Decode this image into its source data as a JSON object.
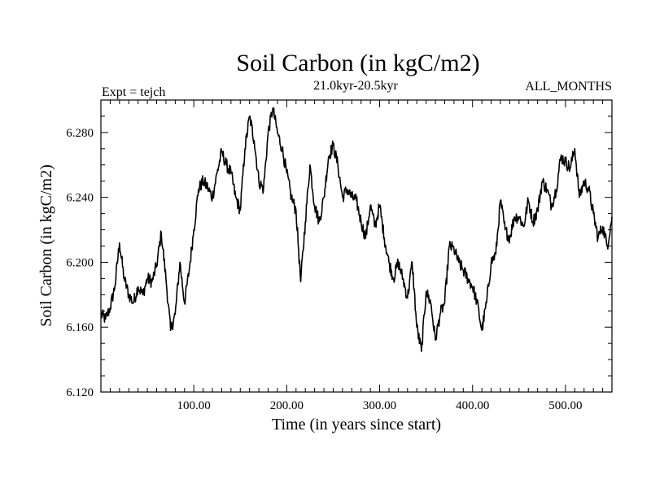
{
  "chart_data": {
    "type": "line",
    "title": "Soil Carbon (in kgC/m2)",
    "subtitle": "21.0kyr-20.5kyr",
    "left_label": "Expt = tejch",
    "right_label": "ALL_MONTHS",
    "xlabel": "Time (in years since start)",
    "ylabel": "Soil Carbon (in kgC/m2)",
    "xlim": [
      0,
      550
    ],
    "ylim": [
      6.12,
      6.3
    ],
    "x_ticks": [
      100,
      200,
      300,
      400,
      500
    ],
    "x_tick_labels": [
      "100.00",
      "200.00",
      "300.00",
      "400.00",
      "500.00"
    ],
    "y_ticks": [
      6.12,
      6.16,
      6.2,
      6.24,
      6.28
    ],
    "y_tick_labels": [
      "6.120",
      "6.160",
      "6.200",
      "6.240",
      "6.280"
    ],
    "grid": false,
    "series": [
      {
        "name": "Soil Carbon",
        "x": [
          0,
          5,
          10,
          15,
          20,
          25,
          30,
          35,
          40,
          45,
          50,
          55,
          60,
          65,
          70,
          75,
          80,
          85,
          90,
          95,
          100,
          105,
          110,
          115,
          120,
          125,
          130,
          135,
          140,
          145,
          150,
          155,
          160,
          165,
          170,
          175,
          180,
          185,
          190,
          195,
          200,
          205,
          210,
          215,
          220,
          225,
          230,
          235,
          240,
          245,
          250,
          255,
          260,
          265,
          270,
          275,
          280,
          285,
          290,
          295,
          300,
          305,
          310,
          315,
          320,
          325,
          330,
          335,
          340,
          345,
          350,
          355,
          360,
          365,
          370,
          375,
          380,
          385,
          390,
          395,
          400,
          405,
          410,
          415,
          420,
          425,
          430,
          435,
          440,
          445,
          450,
          455,
          460,
          465,
          470,
          475,
          480,
          485,
          490,
          495,
          500,
          505,
          510,
          515,
          520,
          525,
          530,
          535,
          540,
          545,
          550
        ],
        "y": [
          6.168,
          6.165,
          6.172,
          6.185,
          6.212,
          6.19,
          6.18,
          6.175,
          6.185,
          6.18,
          6.19,
          6.188,
          6.198,
          6.218,
          6.19,
          6.158,
          6.168,
          6.2,
          6.175,
          6.195,
          6.22,
          6.245,
          6.25,
          6.246,
          6.24,
          6.255,
          6.268,
          6.26,
          6.255,
          6.24,
          6.232,
          6.27,
          6.29,
          6.275,
          6.25,
          6.245,
          6.28,
          6.295,
          6.28,
          6.27,
          6.255,
          6.24,
          6.232,
          6.188,
          6.225,
          6.26,
          6.235,
          6.225,
          6.24,
          6.265,
          6.272,
          6.26,
          6.24,
          6.245,
          6.24,
          6.238,
          6.225,
          6.215,
          6.235,
          6.222,
          6.235,
          6.215,
          6.2,
          6.19,
          6.2,
          6.19,
          6.178,
          6.2,
          6.16,
          6.145,
          6.182,
          6.175,
          6.152,
          6.168,
          6.175,
          6.21,
          6.208,
          6.2,
          6.195,
          6.19,
          6.185,
          6.175,
          6.158,
          6.175,
          6.2,
          6.205,
          6.238,
          6.22,
          6.215,
          6.228,
          6.228,
          6.222,
          6.238,
          6.225,
          6.232,
          6.25,
          6.245,
          6.235,
          6.245,
          6.265,
          6.262,
          6.258,
          6.27,
          6.24,
          6.25,
          6.245,
          6.23,
          6.215,
          6.222,
          6.21,
          6.228
        ]
      }
    ]
  }
}
